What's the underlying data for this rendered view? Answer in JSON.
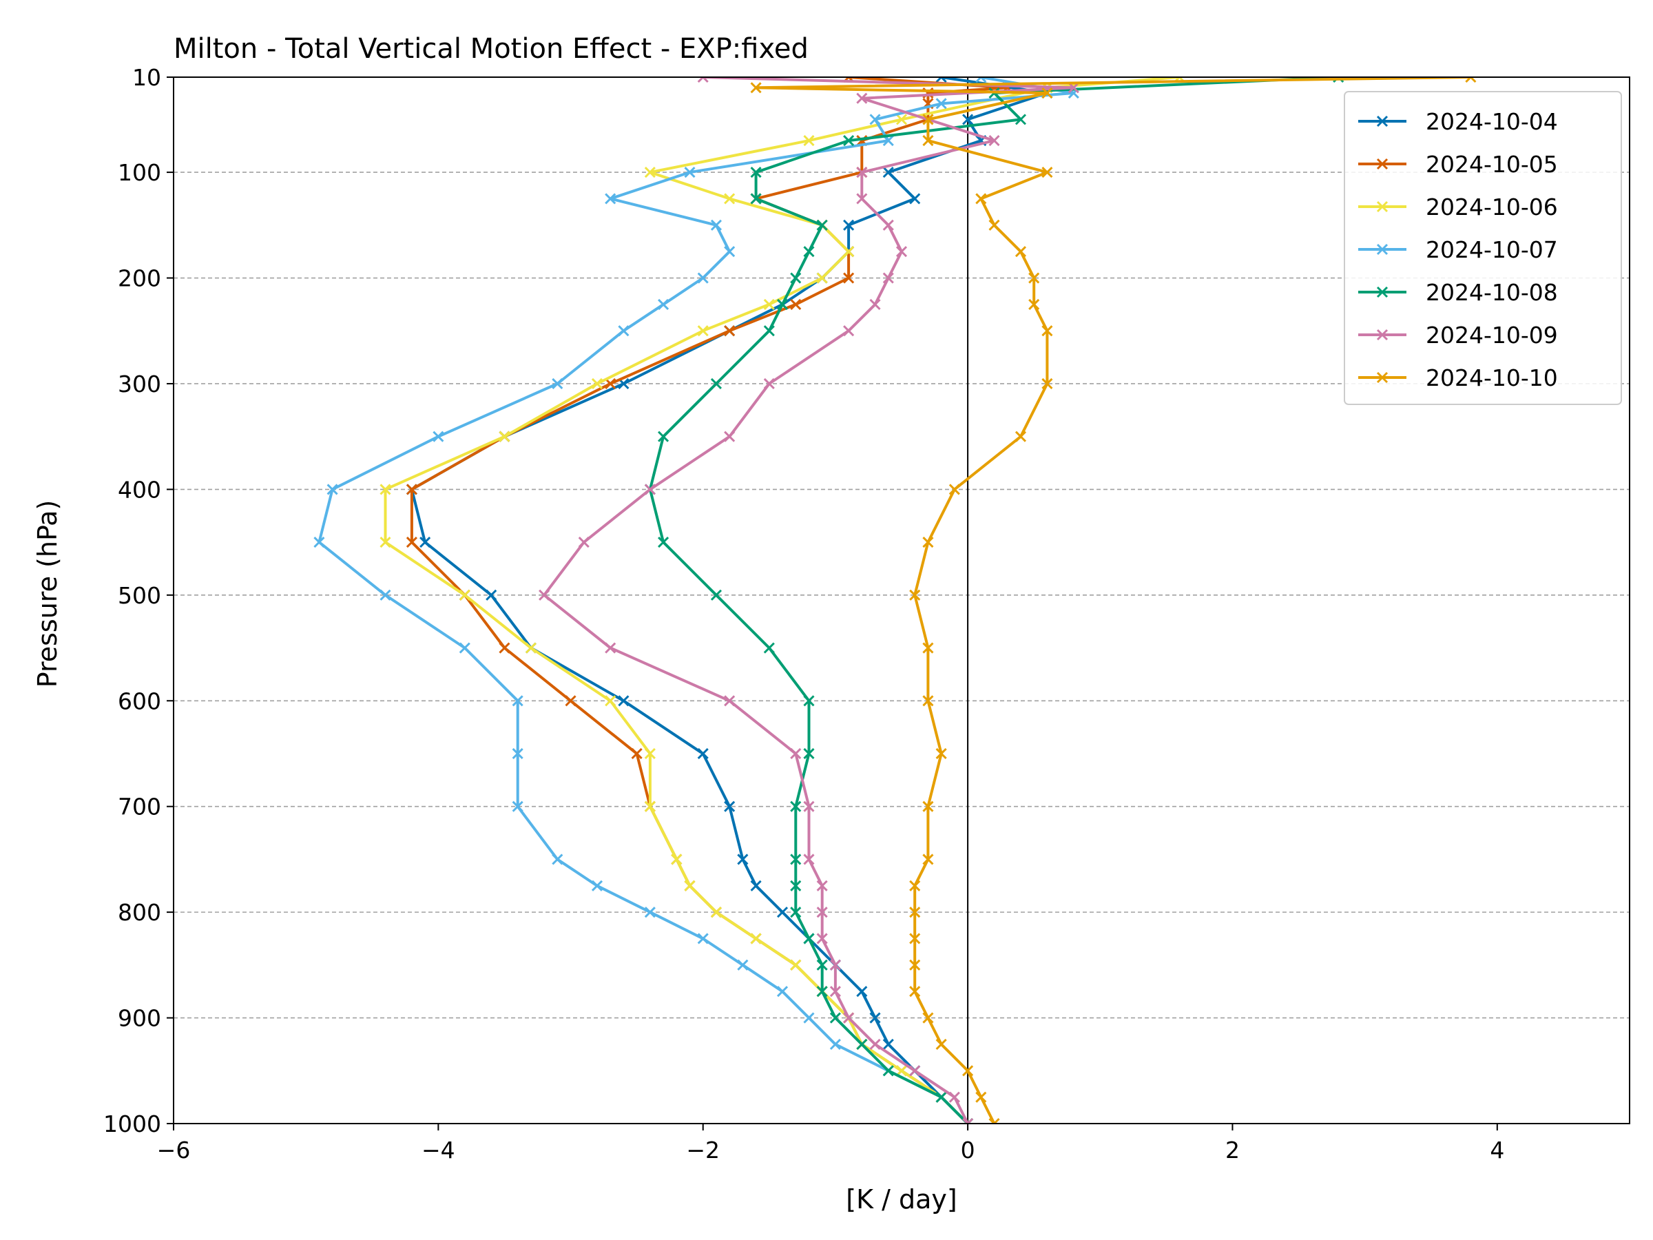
{
  "chart_data": {
    "type": "line",
    "title": "Milton - Total Vertical Motion Effect - EXP:fixed",
    "xlabel": "[K / day]",
    "ylabel": "Pressure (hPa)",
    "xlim": [
      -6,
      5
    ],
    "ylim": [
      1000,
      10
    ],
    "y_inverted": true,
    "x_ticks": [
      -6,
      -4,
      -2,
      0,
      2,
      4
    ],
    "x_tick_labels": [
      "−6",
      "−4",
      "−2",
      "0",
      "2",
      "4"
    ],
    "y_ticks": [
      10,
      100,
      200,
      300,
      400,
      500,
      600,
      700,
      800,
      900,
      1000
    ],
    "y_tick_labels": [
      "10",
      "100",
      "200",
      "300",
      "400",
      "500",
      "600",
      "700",
      "800",
      "900",
      "1000"
    ],
    "grid": "horizontal dashed",
    "zero_line": true,
    "legend_position": "top-right",
    "marker": "x",
    "series": [
      {
        "name": "2024-10-04",
        "color": "#0072b2",
        "points": [
          [
            -0.2,
            10
          ],
          [
            0.6,
            25
          ],
          [
            0.0,
            50
          ],
          [
            0.1,
            70
          ],
          [
            -0.6,
            100
          ],
          [
            -0.4,
            125
          ],
          [
            -0.9,
            150
          ],
          [
            -0.9,
            175
          ],
          [
            -1.1,
            200
          ],
          [
            -1.4,
            225
          ],
          [
            -1.8,
            250
          ],
          [
            -2.6,
            300
          ],
          [
            -3.5,
            350
          ],
          [
            -4.2,
            400
          ],
          [
            -4.1,
            450
          ],
          [
            -3.6,
            500
          ],
          [
            -3.3,
            550
          ],
          [
            -2.6,
            600
          ],
          [
            -2.0,
            650
          ],
          [
            -1.8,
            700
          ],
          [
            -1.7,
            750
          ],
          [
            -1.6,
            775
          ],
          [
            -1.4,
            800
          ],
          [
            -1.2,
            825
          ],
          [
            -1.0,
            850
          ],
          [
            -0.8,
            875
          ],
          [
            -0.7,
            900
          ],
          [
            -0.6,
            925
          ],
          [
            -0.4,
            950
          ],
          [
            -0.2,
            975
          ],
          [
            0.0,
            1000
          ]
        ]
      },
      {
        "name": "2024-10-05",
        "color": "#d55e00",
        "points": [
          [
            -0.9,
            10
          ],
          [
            0.3,
            20
          ],
          [
            -0.3,
            25
          ],
          [
            -0.3,
            35
          ],
          [
            -0.3,
            50
          ],
          [
            -0.8,
            70
          ],
          [
            -0.8,
            100
          ],
          [
            -1.6,
            125
          ],
          [
            -1.1,
            150
          ],
          [
            -0.9,
            175
          ],
          [
            -0.9,
            200
          ],
          [
            -1.3,
            225
          ],
          [
            -1.8,
            250
          ],
          [
            -2.7,
            300
          ],
          [
            -3.5,
            350
          ],
          [
            -4.2,
            400
          ],
          [
            -4.2,
            450
          ],
          [
            -3.8,
            500
          ],
          [
            -3.5,
            550
          ],
          [
            -3.0,
            600
          ],
          [
            -2.5,
            650
          ],
          [
            -2.4,
            700
          ],
          [
            -2.2,
            750
          ],
          [
            -2.1,
            775
          ],
          [
            -1.9,
            800
          ],
          [
            -1.6,
            825
          ],
          [
            -1.3,
            850
          ],
          [
            -1.1,
            875
          ],
          [
            -0.9,
            900
          ],
          [
            -0.8,
            925
          ],
          [
            -0.5,
            950
          ],
          [
            -0.2,
            975
          ],
          [
            0.0,
            1000
          ]
        ]
      },
      {
        "name": "2024-10-06",
        "color": "#f0e442",
        "points": [
          [
            1.6,
            10
          ],
          [
            0.6,
            20
          ],
          [
            -0.5,
            50
          ],
          [
            -1.2,
            70
          ],
          [
            -2.4,
            100
          ],
          [
            -1.8,
            125
          ],
          [
            -1.1,
            150
          ],
          [
            -0.9,
            175
          ],
          [
            -1.1,
            200
          ],
          [
            -1.5,
            225
          ],
          [
            -2.0,
            250
          ],
          [
            -2.8,
            300
          ],
          [
            -3.5,
            350
          ],
          [
            -4.4,
            400
          ],
          [
            -4.4,
            450
          ],
          [
            -3.8,
            500
          ],
          [
            -3.3,
            550
          ],
          [
            -2.7,
            600
          ],
          [
            -2.4,
            650
          ],
          [
            -2.4,
            700
          ],
          [
            -2.2,
            750
          ],
          [
            -2.1,
            775
          ],
          [
            -1.9,
            800
          ],
          [
            -1.6,
            825
          ],
          [
            -1.3,
            850
          ],
          [
            -1.1,
            875
          ],
          [
            -0.9,
            900
          ],
          [
            -0.8,
            925
          ],
          [
            -0.5,
            950
          ],
          [
            -0.2,
            975
          ],
          [
            0.0,
            1000
          ]
        ]
      },
      {
        "name": "2024-10-07",
        "color": "#56b4e9",
        "points": [
          [
            0.1,
            10
          ],
          [
            0.8,
            25
          ],
          [
            -0.2,
            35
          ],
          [
            -0.7,
            50
          ],
          [
            -0.6,
            70
          ],
          [
            -2.1,
            100
          ],
          [
            -2.7,
            125
          ],
          [
            -1.9,
            150
          ],
          [
            -1.8,
            175
          ],
          [
            -2.0,
            200
          ],
          [
            -2.3,
            225
          ],
          [
            -2.6,
            250
          ],
          [
            -3.1,
            300
          ],
          [
            -4.0,
            350
          ],
          [
            -4.8,
            400
          ],
          [
            -4.9,
            450
          ],
          [
            -4.4,
            500
          ],
          [
            -3.8,
            550
          ],
          [
            -3.4,
            600
          ],
          [
            -3.4,
            650
          ],
          [
            -3.4,
            700
          ],
          [
            -3.1,
            750
          ],
          [
            -2.8,
            775
          ],
          [
            -2.4,
            800
          ],
          [
            -2.0,
            825
          ],
          [
            -1.7,
            850
          ],
          [
            -1.4,
            875
          ],
          [
            -1.2,
            900
          ],
          [
            -1.0,
            925
          ],
          [
            -0.6,
            950
          ],
          [
            -0.2,
            975
          ],
          [
            0.0,
            1000
          ]
        ]
      },
      {
        "name": "2024-10-08",
        "color": "#009e73",
        "points": [
          [
            2.8,
            10
          ],
          [
            0.2,
            25
          ],
          [
            0.4,
            50
          ],
          [
            -0.9,
            70
          ],
          [
            -1.6,
            100
          ],
          [
            -1.6,
            125
          ],
          [
            -1.1,
            150
          ],
          [
            -1.2,
            175
          ],
          [
            -1.3,
            200
          ],
          [
            -1.4,
            225
          ],
          [
            -1.5,
            250
          ],
          [
            -1.9,
            300
          ],
          [
            -2.3,
            350
          ],
          [
            -2.4,
            400
          ],
          [
            -2.3,
            450
          ],
          [
            -1.9,
            500
          ],
          [
            -1.5,
            550
          ],
          [
            -1.2,
            600
          ],
          [
            -1.2,
            650
          ],
          [
            -1.3,
            700
          ],
          [
            -1.3,
            750
          ],
          [
            -1.3,
            775
          ],
          [
            -1.3,
            800
          ],
          [
            -1.2,
            825
          ],
          [
            -1.1,
            850
          ],
          [
            -1.1,
            875
          ],
          [
            -1.0,
            900
          ],
          [
            -0.8,
            925
          ],
          [
            -0.6,
            950
          ],
          [
            -0.2,
            975
          ],
          [
            0.0,
            1000
          ]
        ]
      },
      {
        "name": "2024-10-09",
        "color": "#cc79a7",
        "points": [
          [
            -2.0,
            10
          ],
          [
            0.8,
            20
          ],
          [
            -0.8,
            30
          ],
          [
            0.2,
            70
          ],
          [
            -0.8,
            100
          ],
          [
            -0.8,
            125
          ],
          [
            -0.6,
            150
          ],
          [
            -0.5,
            175
          ],
          [
            -0.6,
            200
          ],
          [
            -0.7,
            225
          ],
          [
            -0.9,
            250
          ],
          [
            -1.5,
            300
          ],
          [
            -1.8,
            350
          ],
          [
            -2.4,
            400
          ],
          [
            -2.9,
            450
          ],
          [
            -3.2,
            500
          ],
          [
            -2.7,
            550
          ],
          [
            -1.8,
            600
          ],
          [
            -1.3,
            650
          ],
          [
            -1.2,
            700
          ],
          [
            -1.2,
            750
          ],
          [
            -1.1,
            775
          ],
          [
            -1.1,
            800
          ],
          [
            -1.1,
            825
          ],
          [
            -1.0,
            850
          ],
          [
            -1.0,
            875
          ],
          [
            -0.9,
            900
          ],
          [
            -0.7,
            925
          ],
          [
            -0.4,
            950
          ],
          [
            -0.1,
            975
          ],
          [
            0.0,
            1000
          ]
        ]
      },
      {
        "name": "2024-10-10",
        "color": "#e69f00",
        "points": [
          [
            3.8,
            10
          ],
          [
            -1.6,
            20
          ],
          [
            0.6,
            25
          ],
          [
            -0.3,
            50
          ],
          [
            -0.3,
            70
          ],
          [
            0.6,
            100
          ],
          [
            0.1,
            125
          ],
          [
            0.2,
            150
          ],
          [
            0.4,
            175
          ],
          [
            0.5,
            200
          ],
          [
            0.5,
            225
          ],
          [
            0.6,
            250
          ],
          [
            0.6,
            300
          ],
          [
            0.4,
            350
          ],
          [
            -0.1,
            400
          ],
          [
            -0.3,
            450
          ],
          [
            -0.4,
            500
          ],
          [
            -0.3,
            550
          ],
          [
            -0.3,
            600
          ],
          [
            -0.2,
            650
          ],
          [
            -0.3,
            700
          ],
          [
            -0.3,
            750
          ],
          [
            -0.4,
            775
          ],
          [
            -0.4,
            800
          ],
          [
            -0.4,
            825
          ],
          [
            -0.4,
            850
          ],
          [
            -0.4,
            875
          ],
          [
            -0.3,
            900
          ],
          [
            -0.2,
            925
          ],
          [
            0.0,
            950
          ],
          [
            0.1,
            975
          ],
          [
            0.2,
            1000
          ]
        ]
      }
    ]
  }
}
